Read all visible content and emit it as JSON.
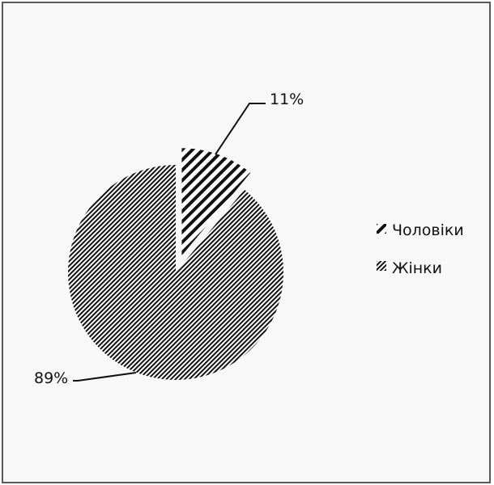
{
  "chart_data": {
    "type": "pie",
    "title": "",
    "slices": [
      {
        "label": "Чоловіки",
        "value": 11,
        "display": "11%",
        "pattern": "wide-diagonal-hatch"
      },
      {
        "label": "Жінки",
        "value": 89,
        "display": "89%",
        "pattern": "dense-diagonal-hatch"
      }
    ],
    "exploded": true,
    "legend_position": "right",
    "colors": {
      "ink": "#111111",
      "background": "#f8f8f8",
      "border": "#5a5a5a"
    }
  }
}
